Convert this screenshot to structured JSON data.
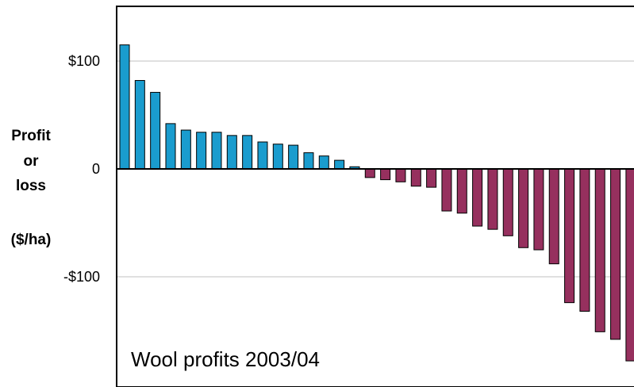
{
  "chart_data": {
    "type": "bar",
    "ylabel_lines": [
      "Profit",
      "or",
      "loss",
      "($/ha)"
    ],
    "annotation": "Wool profits 2003/04",
    "yticks": [
      {
        "value": 100,
        "label": "$100"
      },
      {
        "value": 0,
        "label": "0"
      },
      {
        "value": -100,
        "label": "-$100"
      }
    ],
    "ylim": [
      -200,
      150
    ],
    "grid": true,
    "colors": {
      "profit": "#1a9cce",
      "loss": "#96305e",
      "axis": "#000000",
      "grid": "#c0c0c0"
    },
    "values": [
      115,
      82,
      71,
      42,
      36,
      34,
      34,
      31,
      31,
      25,
      23,
      22,
      15,
      12,
      8,
      2,
      -8,
      -10,
      -12,
      -16,
      -17,
      -39,
      -41,
      -53,
      -56,
      -62,
      -73,
      -75,
      -88,
      -124,
      -132,
      -151,
      -158,
      -178
    ]
  }
}
